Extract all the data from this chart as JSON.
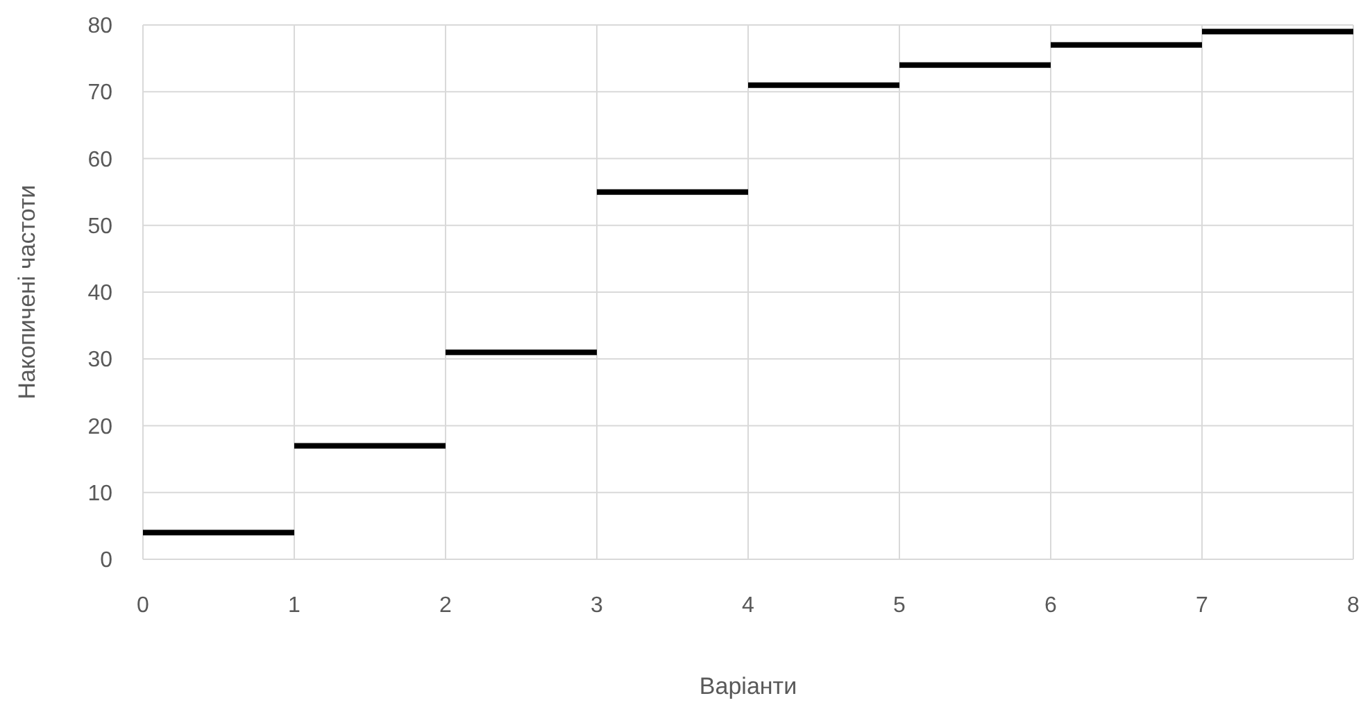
{
  "chart_data": {
    "type": "line",
    "xlabel": "Варіанти",
    "ylabel": "Накопичені частоти",
    "xlim": [
      0,
      8
    ],
    "xticks": [
      0,
      1,
      2,
      3,
      4,
      5,
      6,
      7,
      8
    ],
    "ylim": [
      0,
      80
    ],
    "yticks": [
      0,
      10,
      20,
      30,
      40,
      50,
      60,
      70,
      80
    ],
    "grid": true,
    "marker": "none",
    "line_style": "solid",
    "series": [
      {
        "color": "#000000",
        "x": [
          0,
          1
        ],
        "values": [
          4,
          4
        ]
      },
      {
        "color": "#000000",
        "x": [
          1,
          2
        ],
        "values": [
          17,
          17
        ]
      },
      {
        "color": "#000000",
        "x": [
          2,
          3
        ],
        "values": [
          31,
          31
        ]
      },
      {
        "color": "#000000",
        "x": [
          3,
          4
        ],
        "values": [
          55,
          55
        ]
      },
      {
        "color": "#000000",
        "x": [
          4,
          5
        ],
        "values": [
          71,
          71
        ]
      },
      {
        "color": "#000000",
        "x": [
          5,
          6
        ],
        "values": [
          74,
          74
        ]
      },
      {
        "color": "#000000",
        "x": [
          6,
          7
        ],
        "values": [
          77,
          77
        ]
      },
      {
        "color": "#000000",
        "x": [
          7,
          8
        ],
        "values": [
          79,
          79
        ]
      }
    ]
  }
}
